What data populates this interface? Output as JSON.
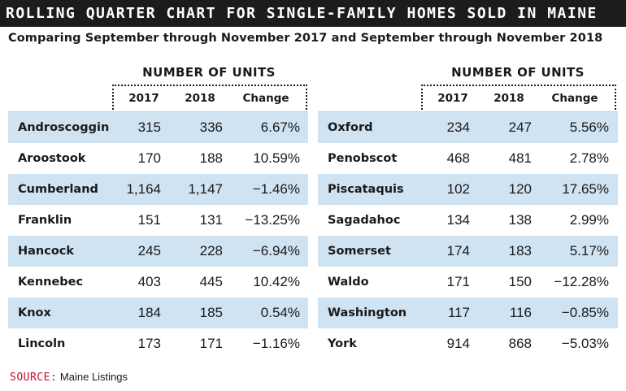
{
  "title": "ROLLING QUARTER CHART FOR SINGLE-FAMILY HOMES SOLD IN MAINE",
  "subtitle": "Comparing September through November 2017 and September through November 2018",
  "columns": {
    "group": "NUMBER OF UNITS",
    "year_a": "2017",
    "year_b": "2018",
    "change": "Change"
  },
  "left_table": [
    {
      "county": "Androscoggin",
      "y2017": "315",
      "y2018": "336",
      "change": "6.67%"
    },
    {
      "county": "Aroostook",
      "y2017": "170",
      "y2018": "188",
      "change": "10.59%"
    },
    {
      "county": "Cumberland",
      "y2017": "1,164",
      "y2018": "1,147",
      "change": "−1.46%"
    },
    {
      "county": "Franklin",
      "y2017": "151",
      "y2018": "131",
      "change": "−13.25%"
    },
    {
      "county": "Hancock",
      "y2017": "245",
      "y2018": "228",
      "change": "−6.94%"
    },
    {
      "county": "Kennebec",
      "y2017": "403",
      "y2018": "445",
      "change": "10.42%"
    },
    {
      "county": "Knox",
      "y2017": "184",
      "y2018": "185",
      "change": "0.54%"
    },
    {
      "county": "Lincoln",
      "y2017": "173",
      "y2018": "171",
      "change": "−1.16%"
    }
  ],
  "right_table": [
    {
      "county": "Oxford",
      "y2017": "234",
      "y2018": "247",
      "change": "5.56%"
    },
    {
      "county": "Penobscot",
      "y2017": "468",
      "y2018": "481",
      "change": "2.78%"
    },
    {
      "county": "Piscataquis",
      "y2017": "102",
      "y2018": "120",
      "change": "17.65%"
    },
    {
      "county": "Sagadahoc",
      "y2017": "134",
      "y2018": "138",
      "change": "2.99%"
    },
    {
      "county": "Somerset",
      "y2017": "174",
      "y2018": "183",
      "change": "5.17%"
    },
    {
      "county": "Waldo",
      "y2017": "171",
      "y2018": "150",
      "change": "−12.28%"
    },
    {
      "county": "Washington",
      "y2017": "117",
      "y2018": "116",
      "change": "−0.85%"
    },
    {
      "county": "York",
      "y2017": "914",
      "y2018": "868",
      "change": "−5.03%"
    }
  ],
  "source": {
    "label": "SOURCE:",
    "text": "Maine Listings"
  },
  "colors": {
    "title_bg": "#1c1c1c",
    "row_shade": "#cfe3f3",
    "source_label": "#c8102e"
  }
}
